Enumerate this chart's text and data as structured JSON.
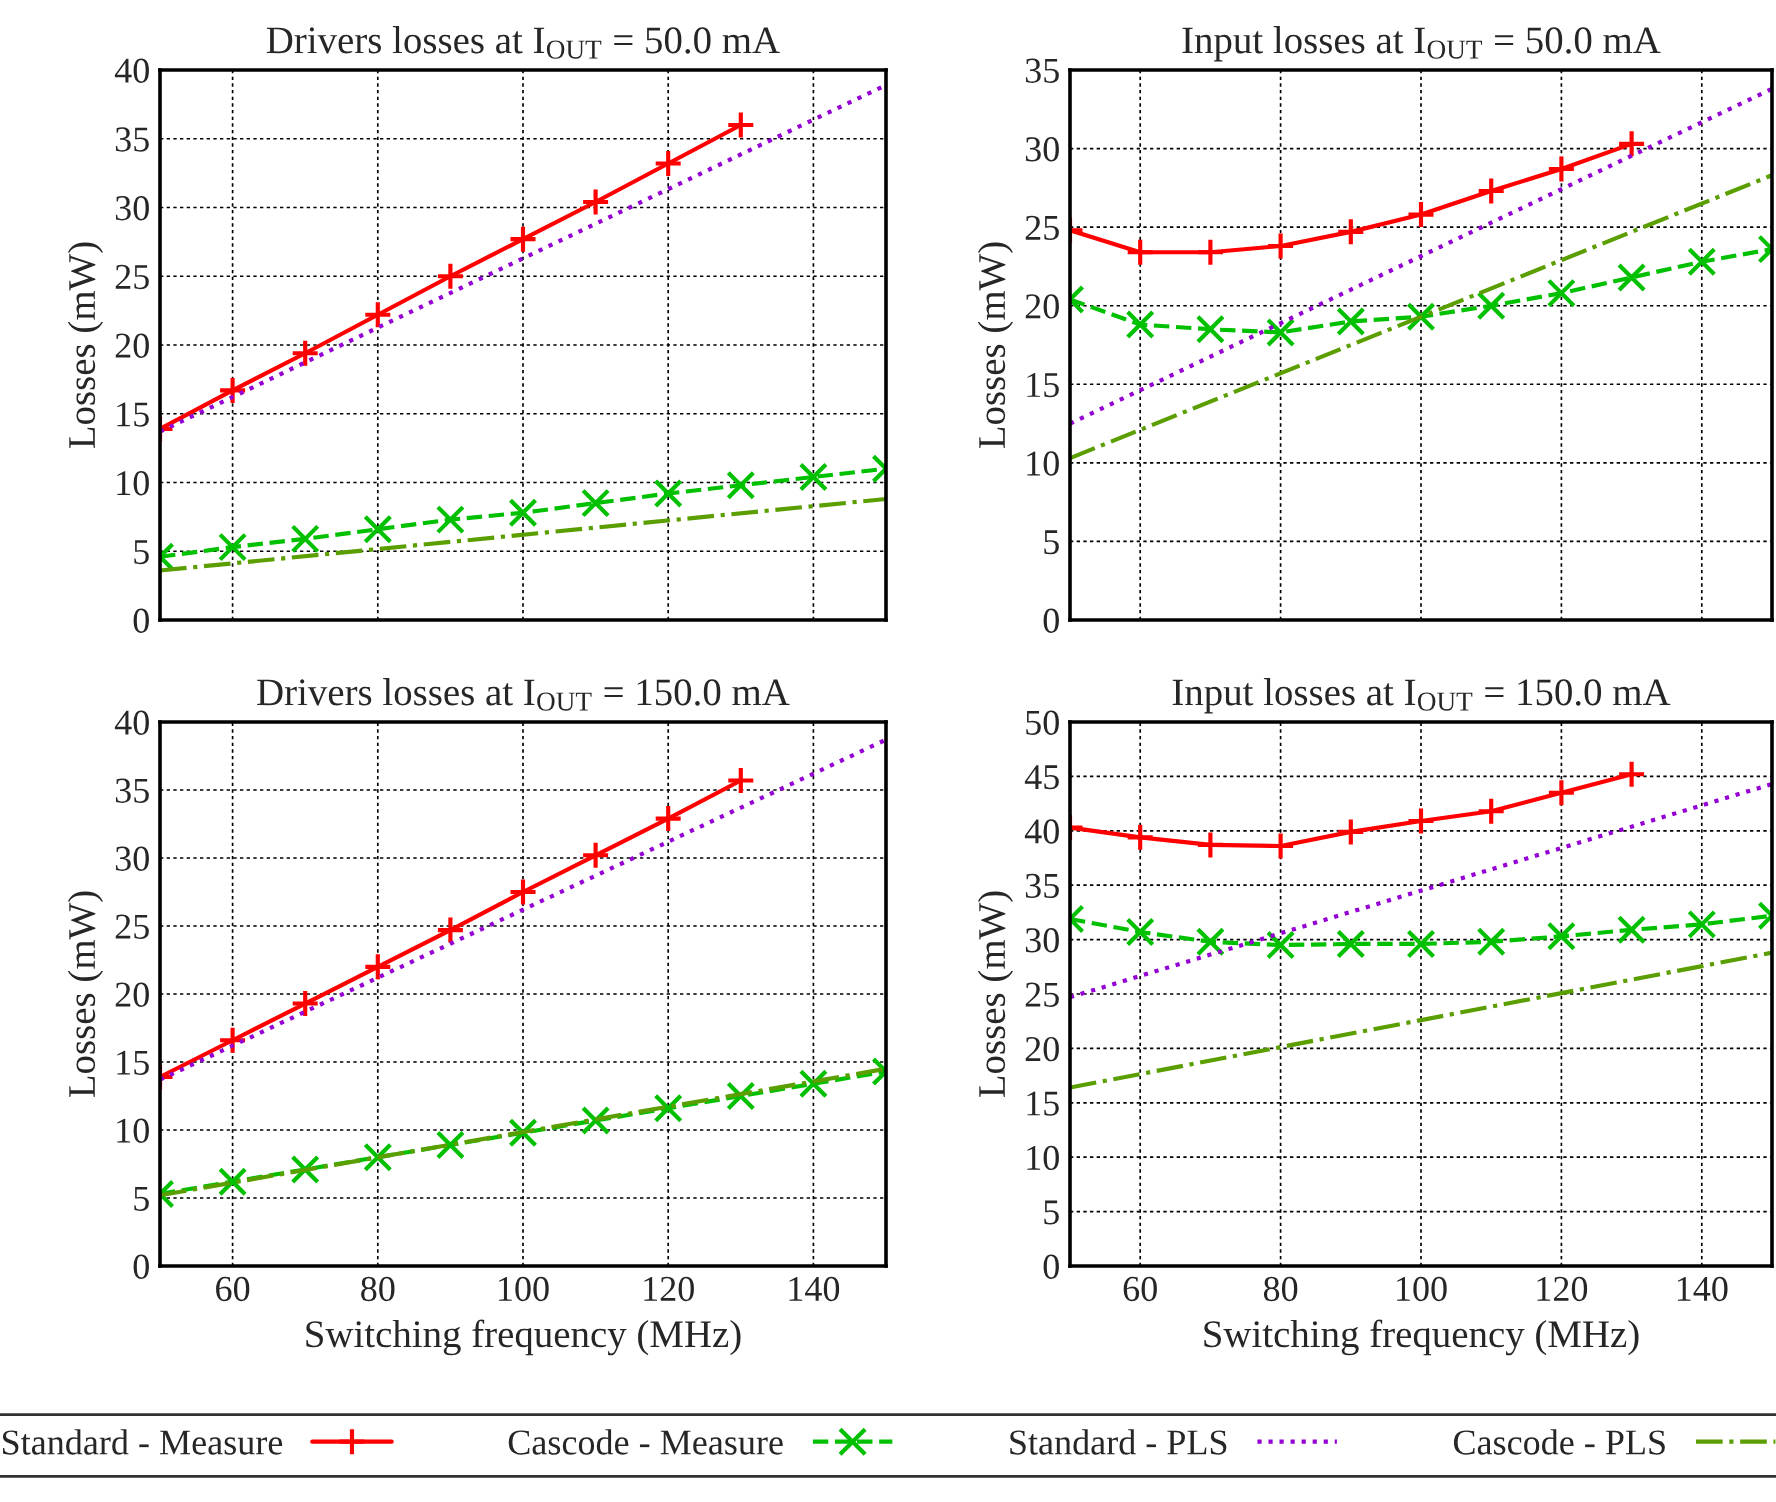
{
  "chart_data": [
    {
      "type": "line",
      "title": "Drivers losses at I$_{OUT}$ = 50.0 mA",
      "ylabel": "Losses (mW)",
      "xlim": [
        50,
        150
      ],
      "xticks": [
        60,
        80,
        100,
        120,
        140
      ],
      "ylim": [
        0,
        40
      ],
      "yticks": [
        0,
        5,
        10,
        15,
        20,
        25,
        30,
        35,
        40
      ],
      "grid": true,
      "legend": "bottom",
      "tick_labels": "y",
      "series": [
        {
          "name": "Standard - Measure",
          "color": "#ff0000",
          "marker": "cross",
          "line_style": "solid",
          "x": [
            50,
            60,
            70,
            80,
            90,
            100,
            110,
            120,
            130
          ],
          "values": [
            13.9,
            16.7,
            19.4,
            22.2,
            25.0,
            27.7,
            30.4,
            33.2,
            36.0
          ]
        },
        {
          "name": "Cascode - Measure",
          "color": "#00c000",
          "marker": "x",
          "line_style": "dashed",
          "x": [
            50,
            60,
            70,
            80,
            90,
            100,
            110,
            120,
            130,
            140,
            150
          ],
          "values": [
            4.6,
            5.3,
            5.9,
            6.6,
            7.3,
            7.8,
            8.5,
            9.2,
            9.8,
            10.4,
            11.0
          ]
        },
        {
          "name": "Standard - PLS",
          "color": "#9400d3",
          "marker": "none",
          "line_style": "dotted",
          "x": [
            50,
            150
          ],
          "values": [
            13.7,
            38.9
          ]
        },
        {
          "name": "Cascode - PLS",
          "color": "#5a9e00",
          "marker": "none",
          "line_style": "dashdot",
          "x": [
            50,
            150
          ],
          "values": [
            3.6,
            8.8
          ]
        }
      ]
    },
    {
      "type": "line",
      "title": "Input losses at I$_{OUT}$ = 50.0 mA",
      "ylabel": "Losses (mW)",
      "xlim": [
        50,
        150
      ],
      "xticks": [
        60,
        80,
        100,
        120,
        140
      ],
      "ylim": [
        0,
        35
      ],
      "yticks": [
        0,
        5,
        10,
        15,
        20,
        25,
        30,
        35
      ],
      "grid": true,
      "tick_labels": "y",
      "series": [
        {
          "color": "#ff0000",
          "marker": "cross",
          "line_style": "solid",
          "x": [
            50,
            60,
            70,
            80,
            90,
            100,
            110,
            120,
            130
          ],
          "values": [
            24.8,
            23.4,
            23.4,
            23.8,
            24.7,
            25.8,
            27.3,
            28.7,
            30.3
          ]
        },
        {
          "color": "#00c000",
          "marker": "x",
          "line_style": "dashed",
          "x": [
            50,
            60,
            70,
            80,
            90,
            100,
            110,
            120,
            130,
            140,
            150
          ],
          "values": [
            20.4,
            18.8,
            18.5,
            18.3,
            19.0,
            19.3,
            20.0,
            20.8,
            21.8,
            22.8,
            23.6
          ]
        },
        {
          "color": "#9400d3",
          "marker": "none",
          "line_style": "dotted",
          "x": [
            50,
            150
          ],
          "values": [
            12.5,
            33.8
          ]
        },
        {
          "color": "#5a9e00",
          "marker": "none",
          "line_style": "dashdot",
          "x": [
            50,
            150
          ],
          "values": [
            10.3,
            28.3
          ]
        }
      ]
    },
    {
      "type": "line",
      "title": "Drivers losses at I$_{OUT}$ = 150.0 mA",
      "xlabel": "Switching frequency (MHz)",
      "ylabel": "Losses (mW)",
      "xlim": [
        50,
        150
      ],
      "xticks": [
        60,
        80,
        100,
        120,
        140
      ],
      "ylim": [
        0,
        40
      ],
      "yticks": [
        0,
        5,
        10,
        15,
        20,
        25,
        30,
        35,
        40
      ],
      "grid": true,
      "series": [
        {
          "color": "#ff0000",
          "marker": "cross",
          "line_style": "solid",
          "x": [
            50,
            60,
            70,
            80,
            90,
            100,
            110,
            120,
            130
          ],
          "values": [
            13.9,
            16.6,
            19.3,
            22.0,
            24.7,
            27.5,
            30.2,
            32.9,
            35.7
          ]
        },
        {
          "color": "#00c000",
          "marker": "x",
          "line_style": "dashed",
          "x": [
            50,
            60,
            70,
            80,
            90,
            100,
            110,
            120,
            130,
            140,
            150
          ],
          "values": [
            5.3,
            6.2,
            7.1,
            8.0,
            8.9,
            9.8,
            10.7,
            11.6,
            12.5,
            13.4,
            14.3
          ]
        },
        {
          "color": "#9400d3",
          "marker": "none",
          "line_style": "dotted",
          "x": [
            50,
            150
          ],
          "values": [
            13.7,
            38.7
          ]
        },
        {
          "color": "#5a9e00",
          "marker": "none",
          "line_style": "dashdot",
          "x": [
            50,
            150
          ],
          "values": [
            5.2,
            14.5
          ]
        }
      ]
    },
    {
      "type": "line",
      "title": "Input losses at I$_{OUT}$ = 150.0 mA",
      "xlabel": "Switching frequency (MHz)",
      "ylabel": "Losses (mW)",
      "xlim": [
        50,
        150
      ],
      "xticks": [
        60,
        80,
        100,
        120,
        140
      ],
      "ylim": [
        0,
        50
      ],
      "yticks": [
        0,
        5,
        10,
        15,
        20,
        25,
        30,
        35,
        40,
        45,
        50
      ],
      "grid": true,
      "series": [
        {
          "color": "#ff0000",
          "marker": "cross",
          "line_style": "solid",
          "x": [
            50,
            60,
            70,
            80,
            90,
            100,
            110,
            120,
            130
          ],
          "values": [
            40.3,
            39.4,
            38.7,
            38.6,
            39.9,
            40.9,
            41.8,
            43.5,
            45.2
          ]
        },
        {
          "color": "#00c000",
          "marker": "x",
          "line_style": "dashed",
          "x": [
            50,
            60,
            70,
            80,
            90,
            100,
            110,
            120,
            130,
            140,
            150
          ],
          "values": [
            31.9,
            30.7,
            29.8,
            29.5,
            29.6,
            29.6,
            29.8,
            30.3,
            30.9,
            31.4,
            32.2
          ]
        },
        {
          "color": "#9400d3",
          "marker": "none",
          "line_style": "dotted",
          "x": [
            50,
            150
          ],
          "values": [
            24.7,
            44.3
          ]
        },
        {
          "color": "#5a9e00",
          "marker": "none",
          "line_style": "dashdot",
          "x": [
            50,
            150
          ],
          "values": [
            16.4,
            28.8
          ]
        }
      ]
    }
  ]
}
